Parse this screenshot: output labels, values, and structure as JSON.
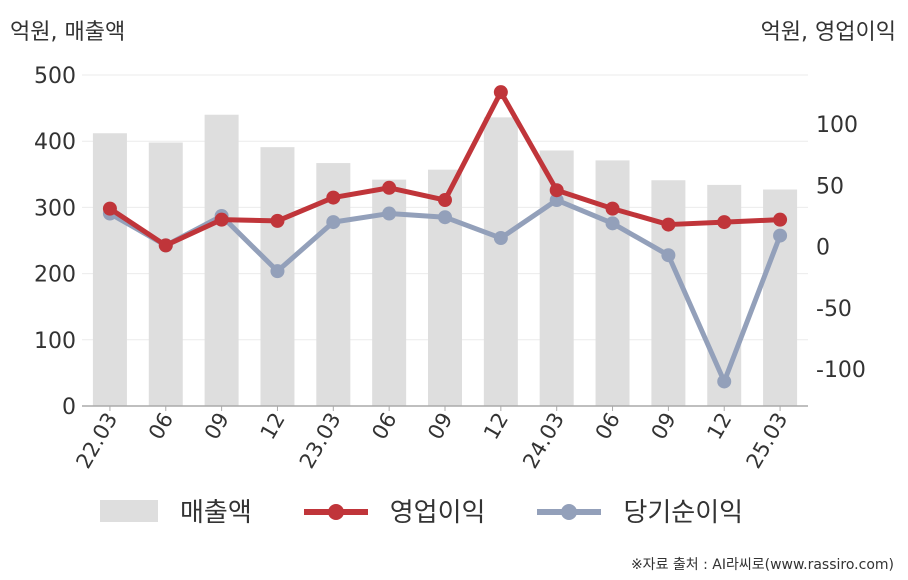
{
  "header": {
    "left_unit": "억원, 매출액",
    "right_unit": "억원, 영업이익"
  },
  "legend": {
    "revenue": "매출액",
    "operating_profit": "영업이익",
    "net_income": "당기순이익"
  },
  "source": "※자료 출처 : AI라씨로(www.rassiro.com)",
  "colors": {
    "bar": "#dedede",
    "operating_profit": "#c0353a",
    "net_income": "#93a0ba",
    "axis": "#aaaaaa",
    "grid": "#ebebeb"
  },
  "chart_data": {
    "type": "bar+line",
    "categories": [
      "22.03",
      "06",
      "09",
      "12",
      "23.03",
      "06",
      "09",
      "12",
      "24.03",
      "06",
      "09",
      "12",
      "25.03"
    ],
    "left_axis": {
      "ylim": [
        0,
        500
      ],
      "ticks": [
        "0",
        "100",
        "200",
        "300",
        "400",
        "500"
      ]
    },
    "right_axis": {
      "ylim": [
        -130,
        140
      ],
      "ticks": [
        "-100",
        "-50",
        "0",
        "50",
        "100"
      ]
    },
    "grid": true,
    "legend_position": "bottom",
    "series": [
      {
        "name": "매출액",
        "type": "bar",
        "axis": "left",
        "values": [
          412,
          398,
          440,
          391,
          367,
          342,
          357,
          436,
          386,
          371,
          341,
          334,
          327
        ]
      },
      {
        "name": "영업이익",
        "type": "line",
        "axis": "right",
        "values": [
          31,
          1,
          22,
          21,
          40,
          48,
          38,
          126,
          46,
          31,
          18,
          20,
          22
        ]
      },
      {
        "name": "당기순이익",
        "type": "line",
        "axis": "right",
        "values": [
          27,
          1,
          25,
          -20,
          20,
          27,
          24,
          7,
          38,
          19,
          -7,
          -110,
          9
        ]
      }
    ]
  }
}
